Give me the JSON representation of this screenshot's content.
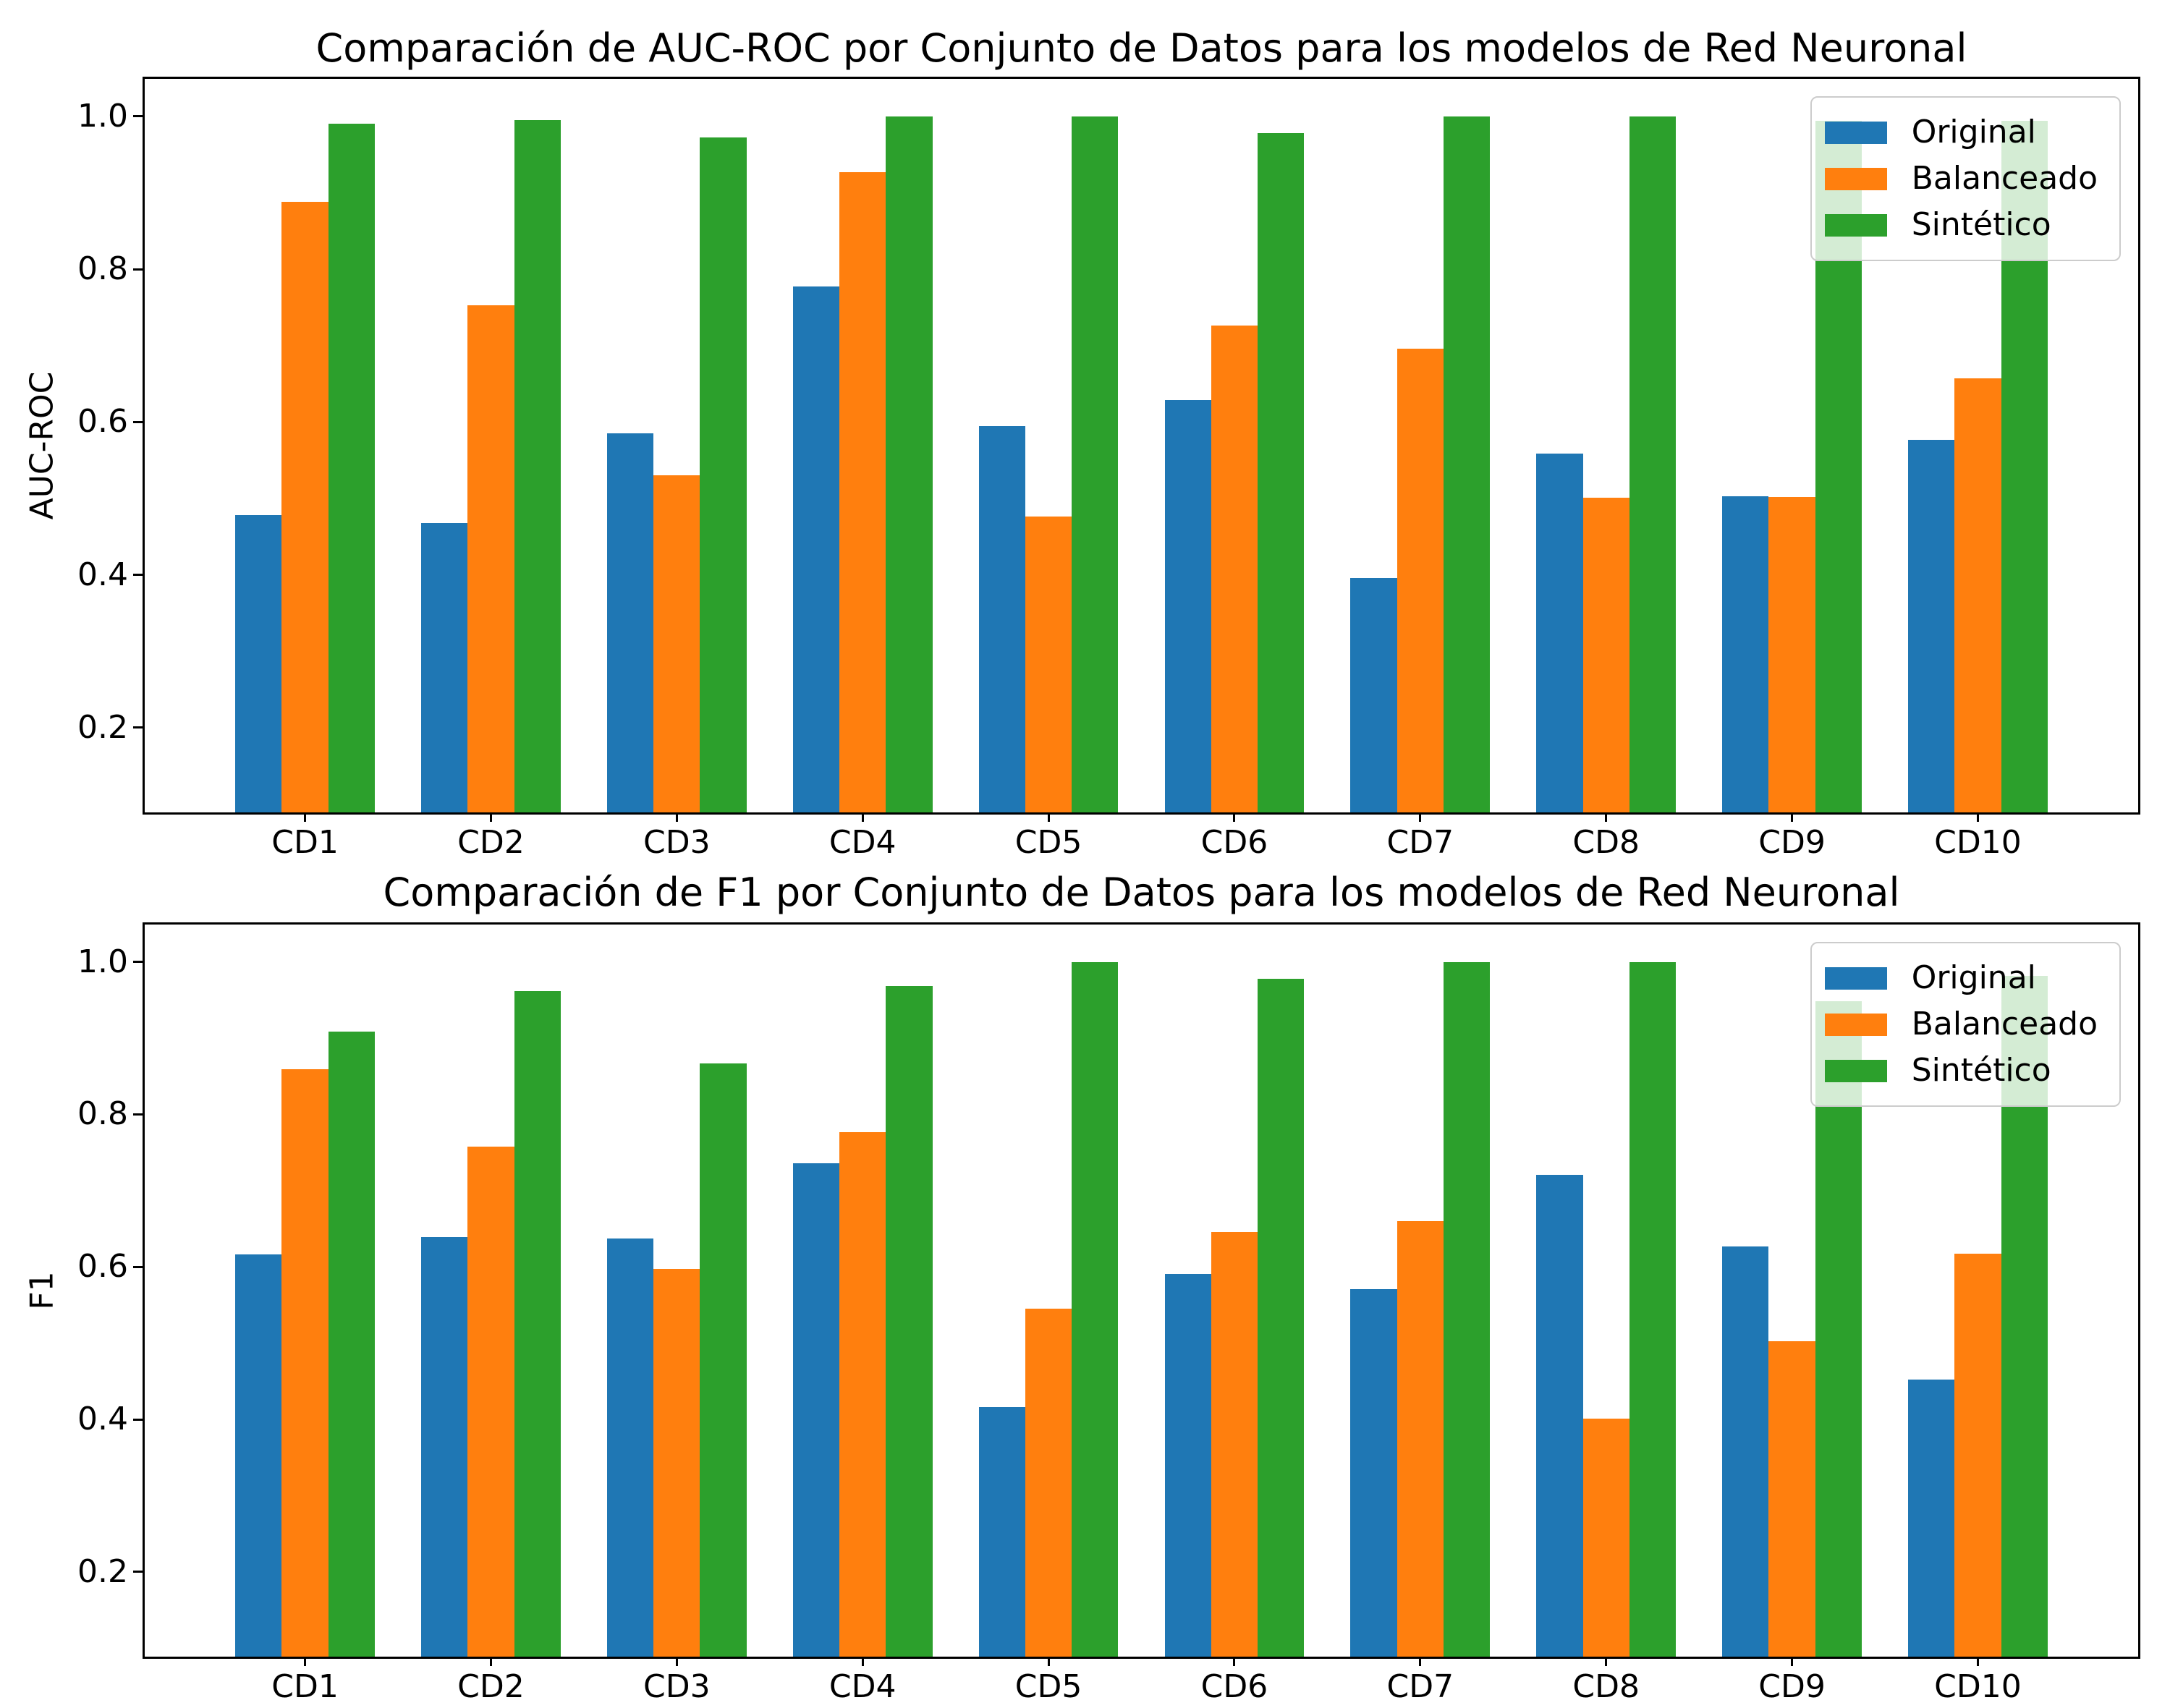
{
  "figure": {
    "background": "#ffffff",
    "text_color": "#000000",
    "axis_color": "#000000",
    "legend_border_color": "#cccccc"
  },
  "chart_data": [
    {
      "type": "bar",
      "title": "Comparación de AUC-ROC por Conjunto de Datos para los modelos de Red Neuronal",
      "xlabel": "",
      "ylabel": "AUC-ROC",
      "categories": [
        "CD1",
        "CD2",
        "CD3",
        "CD4",
        "CD5",
        "CD6",
        "CD7",
        "CD8",
        "CD9",
        "CD10"
      ],
      "series": [
        {
          "name": "Original",
          "color": "#1f77b4",
          "values": [
            0.478,
            0.468,
            0.585,
            0.777,
            0.595,
            0.629,
            0.396,
            0.559,
            0.503,
            0.577
          ]
        },
        {
          "name": "Balanceado",
          "color": "#ff7f0e",
          "values": [
            0.888,
            0.753,
            0.53,
            0.927,
            0.476,
            0.726,
            0.696,
            0.501,
            0.502,
            0.657
          ]
        },
        {
          "name": "Sintético",
          "color": "#2ca02c",
          "values": [
            0.99,
            0.995,
            0.972,
            1.0,
            1.0,
            0.978,
            1.0,
            1.0,
            0.994,
            0.994
          ]
        }
      ],
      "yticks": [
        0.2,
        0.4,
        0.6,
        0.8,
        1.0
      ],
      "ylim": [
        0.089,
        1.049
      ],
      "xlim": [
        -0.8625,
        9.8625
      ],
      "bar_width": 0.25,
      "grid": false,
      "legend_position": "upper right"
    },
    {
      "type": "bar",
      "title": "Comparación de F1 por Conjunto de Datos para los modelos de Red Neuronal",
      "xlabel": "",
      "ylabel": "F1",
      "categories": [
        "CD1",
        "CD2",
        "CD3",
        "CD4",
        "CD5",
        "CD6",
        "CD7",
        "CD8",
        "CD9",
        "CD10"
      ],
      "series": [
        {
          "name": "Original",
          "color": "#1f77b4",
          "values": [
            0.616,
            0.639,
            0.637,
            0.736,
            0.416,
            0.591,
            0.571,
            0.721,
            0.627,
            0.452
          ]
        },
        {
          "name": "Balanceado",
          "color": "#ff7f0e",
          "values": [
            0.859,
            0.758,
            0.597,
            0.777,
            0.545,
            0.646,
            0.66,
            0.401,
            0.503,
            0.617
          ]
        },
        {
          "name": "Sintético",
          "color": "#2ca02c",
          "values": [
            0.909,
            0.962,
            0.867,
            0.968,
            1.0,
            0.978,
            1.0,
            1.0,
            0.948,
            0.982
          ]
        }
      ],
      "yticks": [
        0.2,
        0.4,
        0.6,
        0.8,
        1.0
      ],
      "ylim": [
        0.089,
        1.049
      ],
      "xlim": [
        -0.8625,
        9.8625
      ],
      "bar_width": 0.25,
      "grid": false,
      "legend_position": "upper right"
    }
  ]
}
